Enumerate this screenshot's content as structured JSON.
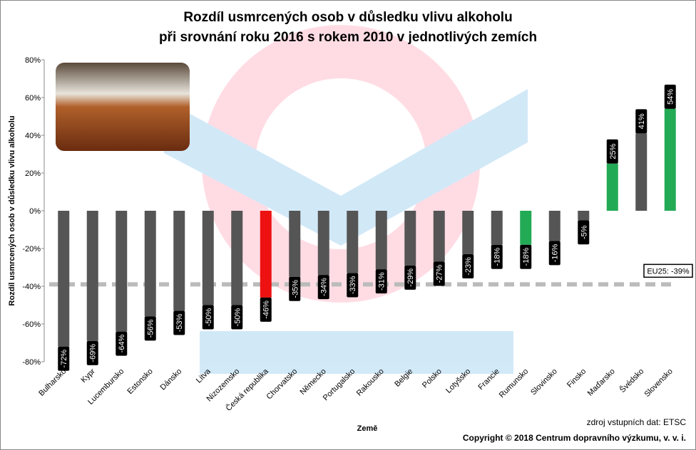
{
  "chart_data": {
    "type": "bar",
    "title": [
      "Rozdíl usmrcených osob v důsledku vlivu alkoholu",
      "při srovnání roku 2016 s rokem 2010 v jednotlivých zemích"
    ],
    "x_label": "Země",
    "y_label": "Rozdíl usmrcených osob v důsledku vlivu alkoholu",
    "categories": [
      "Bulharsko",
      "Kypr",
      "Lucembursko",
      "Estonsko",
      "Dánsko",
      "Litva",
      "Nizozemsko",
      "Česká republika",
      "Chorvatsko",
      "Německo",
      "Portugalsko",
      "Rakousko",
      "Belgie",
      "Polsko",
      "Lotyšsko",
      "Francie",
      "Rumunsko",
      "Slovinsko",
      "Finsko",
      "Maďarsko",
      "Švédsko",
      "Slovensko"
    ],
    "values": [
      -72,
      -69,
      -64,
      -56,
      -53,
      -50,
      -50,
      -46,
      -35,
      -34,
      -33,
      -31,
      -29,
      -27,
      -23,
      -18,
      -18,
      -16,
      -5,
      25,
      41,
      54
    ],
    "value_labels": [
      "-72%",
      "-69%",
      "-64%",
      "-56%",
      "-53%",
      "-50%",
      "-50%",
      "-46%",
      "-35%",
      "-34%",
      "-33%",
      "-31%",
      "-29%",
      "-27%",
      "-23%",
      "-18%",
      "-18%",
      "-16%",
      "-5%",
      "25%",
      "41%",
      "54%"
    ],
    "colors": [
      "#555555",
      "#555555",
      "#555555",
      "#555555",
      "#555555",
      "#555555",
      "#555555",
      "#ee1111",
      "#555555",
      "#555555",
      "#555555",
      "#555555",
      "#555555",
      "#555555",
      "#555555",
      "#555555",
      "#22aa55",
      "#555555",
      "#555555",
      "#22aa55",
      "#555555",
      "#22aa55"
    ],
    "ylim": [
      -80,
      80
    ],
    "yticks": [
      {
        "value": -80,
        "label": "-80%"
      },
      {
        "value": -60,
        "label": "-60%"
      },
      {
        "value": -40,
        "label": "-40%"
      },
      {
        "value": -20,
        "label": "-20%"
      },
      {
        "value": 0,
        "label": "0%"
      },
      {
        "value": 20,
        "label": "20%"
      },
      {
        "value": 40,
        "label": "40%"
      },
      {
        "value": 60,
        "label": "60%"
      },
      {
        "value": 80,
        "label": "80%"
      }
    ],
    "reference": {
      "value": -39,
      "label": "EU25: -39%",
      "color": "#bbbbbb"
    },
    "source": "zdroj vstupních dat: ETSC",
    "copyright": "Copyright © 2018  Centrum dopravního výzkumu, v. v. i."
  }
}
